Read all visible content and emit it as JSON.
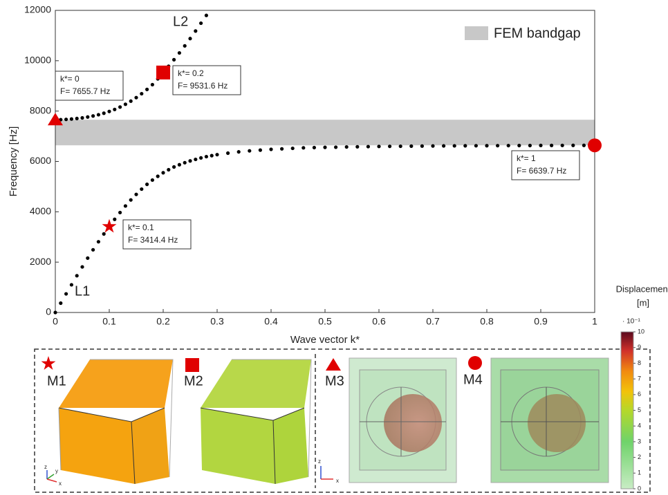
{
  "chart_data": {
    "type": "scatter",
    "xlabel": "Wave vector k*",
    "ylabel": "Frequency [Hz]",
    "xlim": [
      0,
      1
    ],
    "ylim": [
      0,
      12000
    ],
    "xticks": [
      0,
      0.1,
      0.2,
      0.3,
      0.4,
      0.5,
      0.6,
      0.7,
      0.8,
      0.9,
      1
    ],
    "yticks": [
      0,
      2000,
      4000,
      6000,
      8000,
      10000,
      12000
    ],
    "series": [
      {
        "name": "L1",
        "color": "#000000",
        "x": [
          0,
          0.01,
          0.02,
          0.03,
          0.04,
          0.05,
          0.06,
          0.07,
          0.08,
          0.09,
          0.1,
          0.11,
          0.12,
          0.13,
          0.14,
          0.15,
          0.16,
          0.17,
          0.18,
          0.19,
          0.2,
          0.21,
          0.22,
          0.23,
          0.24,
          0.25,
          0.26,
          0.27,
          0.28,
          0.29,
          0.3,
          0.32,
          0.34,
          0.36,
          0.38,
          0.4,
          0.42,
          0.44,
          0.46,
          0.48,
          0.5,
          0.52,
          0.54,
          0.56,
          0.58,
          0.6,
          0.62,
          0.64,
          0.66,
          0.68,
          0.7,
          0.72,
          0.74,
          0.76,
          0.78,
          0.8,
          0.82,
          0.84,
          0.86,
          0.88,
          0.9,
          0.92,
          0.94,
          0.96,
          0.98,
          1
        ],
        "values": [
          0,
          370,
          740,
          1100,
          1460,
          1810,
          2160,
          2490,
          2810,
          3120,
          3414.4,
          3700,
          3970,
          4230,
          4470,
          4690,
          4900,
          5090,
          5260,
          5410,
          5550,
          5670,
          5780,
          5870,
          5950,
          6020,
          6080,
          6140,
          6190,
          6230,
          6270,
          6330,
          6380,
          6420,
          6450,
          6480,
          6500,
          6520,
          6540,
          6550,
          6560,
          6565,
          6575,
          6582,
          6588,
          6595,
          6599,
          6603,
          6607,
          6611,
          6614,
          6617,
          6619,
          6621,
          6623,
          6625,
          6627,
          6629,
          6631,
          6632,
          6634,
          6635,
          6636,
          6638,
          6639,
          6639.7
        ]
      },
      {
        "name": "L2",
        "color": "#000000",
        "x": [
          0,
          0.01,
          0.02,
          0.03,
          0.04,
          0.05,
          0.06,
          0.07,
          0.08,
          0.09,
          0.1,
          0.11,
          0.12,
          0.13,
          0.14,
          0.15,
          0.16,
          0.17,
          0.18,
          0.19,
          0.2,
          0.21,
          0.22,
          0.23,
          0.24,
          0.25,
          0.26,
          0.27,
          0.28
        ],
        "values": [
          7655.7,
          7660,
          7670,
          7685,
          7705,
          7730,
          7765,
          7805,
          7855,
          7915,
          7985,
          8065,
          8160,
          8270,
          8395,
          8535,
          8690,
          8860,
          9050,
          9280,
          9531.6,
          9780,
          10040,
          10310,
          10590,
          10880,
          11180,
          11490,
          11800
        ]
      }
    ],
    "bandgap": {
      "label": "FEM bandgap",
      "range": [
        6639.7,
        7655.7
      ],
      "color": "#c8c8c8"
    },
    "markers": [
      {
        "shape": "star",
        "x": 0.1,
        "y": 3414.4,
        "k_label": "k*= 0.1",
        "f_label": "F= 3414.4 Hz",
        "mode": "M1"
      },
      {
        "shape": "square",
        "x": 0.2,
        "y": 9531.6,
        "k_label": "k*= 0.2",
        "f_label": "F= 9531.6 Hz",
        "mode": "M2"
      },
      {
        "shape": "triangle",
        "x": 0,
        "y": 7655.7,
        "k_label": "k*= 0",
        "f_label": "F= 7655.7 Hz",
        "mode": "M3"
      },
      {
        "shape": "circle",
        "x": 1,
        "y": 6639.7,
        "k_label": "k*= 1",
        "f_label": "F= 6639.7 Hz",
        "mode": "M4"
      }
    ],
    "marker_color": "#e00000",
    "triad_labels": [
      "z",
      "y",
      "x"
    ],
    "colorbar": {
      "title": "Displacement",
      "unit": "[m]",
      "scale_label": "· 10⁻¹",
      "lim": [
        0,
        10
      ],
      "ticks": [
        0,
        1,
        2,
        3,
        4,
        5,
        6,
        7,
        8,
        9,
        10
      ]
    }
  }
}
